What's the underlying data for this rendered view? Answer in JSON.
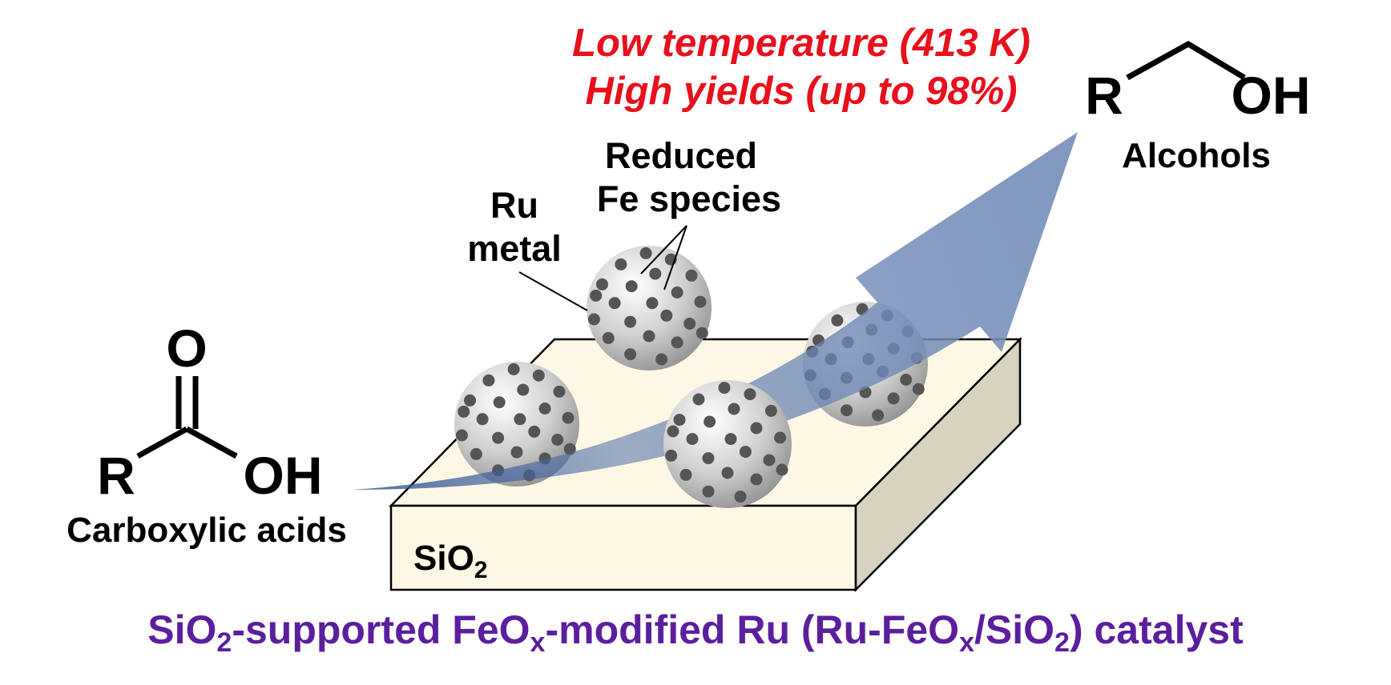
{
  "conditions": {
    "line1": "Low temperature (413 K)",
    "line2": "High yields (up to 98%)"
  },
  "reactant": {
    "r": "R",
    "o": "O",
    "oh": "OH",
    "name": "Carboxylic acids"
  },
  "product": {
    "r": "R",
    "oh": "OH",
    "name": "Alcohols"
  },
  "labels": {
    "ru_line1": "Ru",
    "ru_line2": "metal",
    "fe_line1": "Reduced",
    "fe_line2": "Fe species"
  },
  "support": {
    "name": "SiO",
    "subscript": "2"
  },
  "caption": {
    "p1": "SiO",
    "s1": "2",
    "p2": "-supported FeO",
    "s2": "x",
    "p3": "-modified Ru (Ru-FeO",
    "s3": "x",
    "p4": "/SiO",
    "s4": "2",
    "p5": ") catalyst"
  },
  "colors": {
    "conditions": "#e8101c",
    "caption": "#5b1f9e",
    "arrow": "#6c86b4",
    "support_top": "#fdf7e6",
    "support_side": "#d8d2c1",
    "dots": "#555555"
  }
}
